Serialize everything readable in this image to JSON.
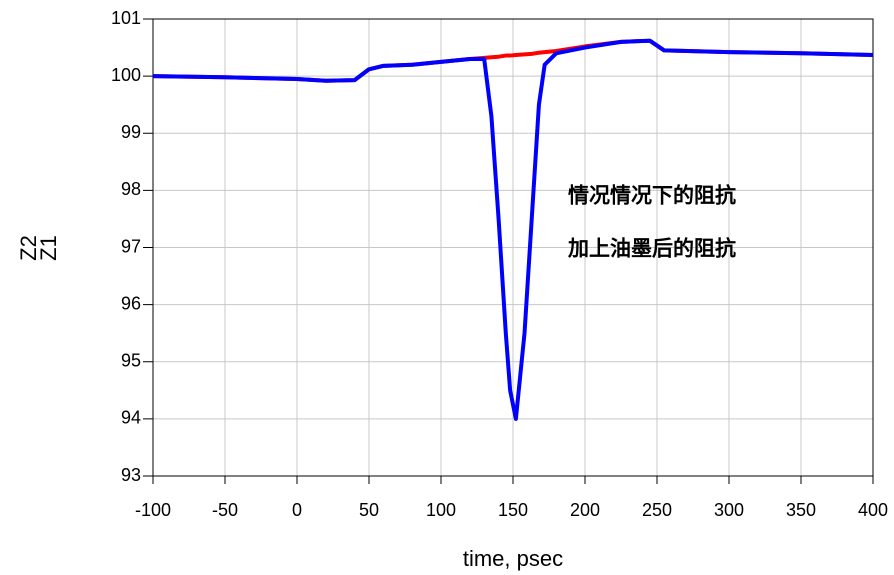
{
  "chart_data": {
    "type": "line",
    "x_label": "time, psec",
    "x": [
      -100,
      -50,
      0,
      20,
      40,
      50,
      60,
      80,
      100,
      120,
      130,
      135,
      140,
      145,
      148,
      152,
      158,
      163,
      168,
      172,
      180,
      200,
      225,
      245,
      255,
      300,
      350,
      400
    ],
    "series": [
      {
        "name": "Z1",
        "color": "#ff0000",
        "values": [
          100,
          99.98,
          99.95,
          99.92,
          99.93,
          100.12,
          100.18,
          100.2,
          100.25,
          100.3,
          100.32,
          100.33,
          100.34,
          100.36,
          100.36,
          100.37,
          100.38,
          100.39,
          100.41,
          100.42,
          100.44,
          100.52,
          100.6,
          100.62,
          100.45,
          100.42,
          100.4,
          100.37
        ]
      },
      {
        "name": "Z2",
        "color": "#0000ff",
        "values": [
          100,
          99.98,
          99.95,
          99.92,
          99.93,
          100.12,
          100.18,
          100.2,
          100.25,
          100.3,
          100.3,
          99.3,
          97.5,
          95.5,
          94.5,
          94.0,
          95.5,
          97.5,
          99.5,
          100.2,
          100.4,
          100.5,
          100.6,
          100.62,
          100.45,
          100.42,
          100.4,
          100.37
        ]
      }
    ],
    "annotations": [
      {
        "text": "情况情况下的阻抗",
        "color": "#ff0000"
      },
      {
        "text": "加上油墨后的阻抗",
        "color": "#0000ff"
      }
    ],
    "xlim": [
      -100,
      400
    ],
    "xticks": [
      -100,
      -50,
      0,
      50,
      100,
      150,
      200,
      250,
      300,
      350,
      400
    ],
    "ylim": [
      93,
      101
    ],
    "yticks": [
      93,
      94,
      95,
      96,
      97,
      98,
      99,
      100,
      101
    ],
    "grid": true
  }
}
